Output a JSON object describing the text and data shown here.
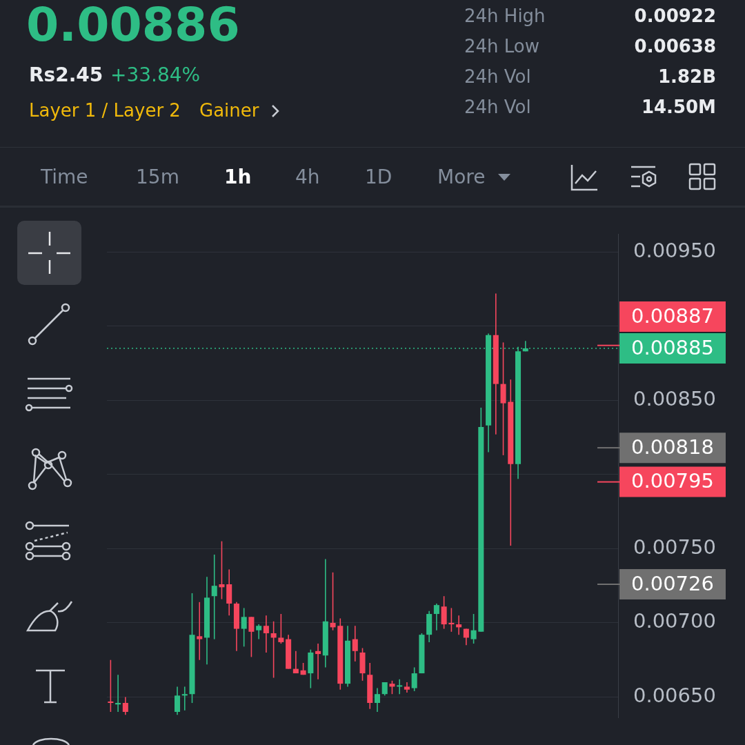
{
  "chart_data": {
    "type": "candlestick",
    "title": "0.00886",
    "subtitle": "Rs2.45",
    "annotations": [
      "+33.84%",
      "Layer 1 / Layer 2",
      "Gainer",
      "24h High",
      "0.00922",
      "24h Low",
      "0.00638",
      "24h Vol",
      "1.82B",
      "24h Vol",
      "14.50M",
      "Time",
      "15m",
      "1h",
      "4h",
      "1D",
      "More"
    ],
    "categories": [
      null,
      null,
      null,
      null,
      null,
      null,
      null,
      null,
      null,
      null,
      null,
      null,
      null,
      null,
      null,
      null,
      null,
      null,
      null,
      null,
      null,
      null,
      null,
      null,
      null,
      null,
      null,
      null,
      null,
      null,
      null,
      null,
      null,
      null,
      null,
      null,
      null,
      null,
      null,
      null,
      null,
      null,
      null,
      null,
      null,
      null,
      null,
      null,
      null,
      null,
      null,
      null,
      null,
      null,
      null,
      null,
      null,
      null,
      null,
      null,
      null,
      null,
      null,
      null,
      null,
      null,
      null,
      null,
      null
    ],
    "ohlc": [
      [
        0.00647,
        0.00675,
        0.0064,
        0.00646
      ],
      [
        0.00645,
        0.00665,
        0.0064,
        0.00646
      ],
      [
        0.00646,
        0.0065,
        0.00638,
        0.0064
      ],
      null,
      null,
      null,
      null,
      null,
      null,
      [
        0.0064,
        0.00657,
        0.00638,
        0.00651
      ],
      [
        0.00651,
        0.00657,
        0.00641,
        0.00652
      ],
      [
        0.00652,
        0.0072,
        0.00646,
        0.00692
      ],
      [
        0.00691,
        0.00714,
        0.00675,
        0.00689
      ],
      [
        0.0069,
        0.00731,
        0.00672,
        0.00717
      ],
      [
        0.00718,
        0.00746,
        0.00689,
        0.00725
      ],
      [
        0.00726,
        0.00755,
        0.00716,
        0.00724
      ],
      [
        0.00726,
        0.00736,
        0.00705,
        0.00713
      ],
      [
        0.00713,
        0.00714,
        0.00681,
        0.00696
      ],
      [
        0.00696,
        0.0071,
        0.00684,
        0.00704
      ],
      [
        0.00704,
        0.00704,
        0.00677,
        0.00694
      ],
      [
        0.00695,
        0.00699,
        0.00689,
        0.00698
      ],
      [
        0.00698,
        0.00705,
        0.0068,
        0.00693
      ],
      [
        0.00693,
        0.00701,
        0.00663,
        0.0069
      ],
      [
        0.0069,
        0.00706,
        0.00686,
        0.00687
      ],
      [
        0.00689,
        0.00692,
        0.00669,
        0.00669
      ],
      [
        0.00669,
        0.00681,
        0.00666,
        0.00666
      ],
      [
        0.00668,
        0.00673,
        0.00665,
        0.00665
      ],
      [
        0.00666,
        0.00682,
        0.00656,
        0.0068
      ],
      [
        0.00681,
        0.00686,
        0.00662,
        0.00679
      ],
      [
        0.00678,
        0.00743,
        0.0067,
        0.00701
      ],
      [
        0.007,
        0.00734,
        0.00695,
        0.00697
      ],
      [
        0.00698,
        0.00703,
        0.00655,
        0.00659
      ],
      [
        0.00659,
        0.00698,
        0.00657,
        0.00688
      ],
      [
        0.00689,
        0.00698,
        0.00674,
        0.00681
      ],
      [
        0.0068,
        0.00683,
        0.00661,
        0.00666
      ],
      [
        0.00665,
        0.00673,
        0.00642,
        0.00646
      ],
      [
        0.00646,
        0.00656,
        0.0064,
        0.00652
      ],
      [
        0.00652,
        0.0066,
        0.00651,
        0.0066
      ],
      [
        0.00659,
        0.00661,
        0.00652,
        0.00657
      ],
      [
        0.00657,
        0.00662,
        0.00652,
        0.00657
      ],
      [
        0.00657,
        0.0066,
        0.00653,
        0.00655
      ],
      [
        0.00656,
        0.0067,
        0.00654,
        0.00666
      ],
      [
        0.00666,
        0.00693,
        0.00666,
        0.00692
      ],
      [
        0.00692,
        0.00708,
        0.00687,
        0.00706
      ],
      [
        0.00706,
        0.00713,
        0.00695,
        0.00712
      ],
      [
        0.00711,
        0.00718,
        0.00696,
        0.00699
      ],
      [
        0.007,
        0.0071,
        0.00694,
        0.00699
      ],
      [
        0.00699,
        0.00705,
        0.00692,
        0.00697
      ],
      [
        0.00696,
        0.00696,
        0.00685,
        0.0069
      ],
      [
        0.00689,
        0.00706,
        0.00686,
        0.00695
      ],
      [
        0.00694,
        0.00845,
        0.00694,
        0.00832
      ],
      [
        0.00833,
        0.00895,
        0.00815,
        0.00894
      ],
      [
        0.00894,
        0.00922,
        0.00827,
        0.00861
      ],
      [
        0.00861,
        0.00889,
        0.00813,
        0.00848
      ],
      [
        0.00849,
        0.00864,
        0.00752,
        0.00807
      ],
      [
        0.00807,
        0.00886,
        0.00797,
        0.00883
      ],
      [
        0.00883,
        0.0089,
        0.00883,
        0.00885
      ],
      null,
      null,
      null,
      null,
      null,
      null,
      null,
      null,
      null,
      null,
      null,
      null
    ],
    "colors": [
      "#f6465d",
      "#2ebd85",
      "#f6465d",
      null,
      null,
      null,
      null,
      null,
      null,
      "#2ebd85",
      "#2ebd85",
      "#2ebd85",
      "#f6465d",
      "#2ebd85",
      "#2ebd85",
      "#f6465d",
      "#f6465d",
      "#f6465d",
      "#2ebd85",
      "#f6465d",
      "#2ebd85",
      "#f6465d",
      "#f6465d",
      "#f6465d",
      "#f6465d",
      "#f6465d",
      "#f6465d",
      "#2ebd85",
      "#f6465d",
      "#2ebd85",
      "#f6465d",
      "#f6465d",
      "#2ebd85",
      "#f6465d",
      "#f6465d",
      "#f6465d",
      "#2ebd85",
      "#2ebd85",
      "#f6465d",
      "#2ebd85",
      "#f6465d",
      "#2ebd85",
      "#2ebd85",
      "#2ebd85",
      "#2ebd85",
      "#f6465d",
      "#f6465d",
      "#f6465d",
      "#f6465d",
      "#2ebd85",
      "#2ebd85",
      "#2ebd85",
      "#f6465d",
      "#f6465d",
      "#f6465d",
      "#2ebd85",
      "#2ebd85",
      null,
      null,
      null,
      null,
      null,
      null,
      null,
      null,
      null,
      null,
      null,
      null
    ],
    "ylim": [
      0.00636,
      0.00962
    ],
    "yticks": [
      {
        "value": 0.0065,
        "label": "0.00650"
      },
      {
        "value": 0.007,
        "label": "0.00700"
      },
      {
        "value": 0.0075,
        "label": "0.00750"
      },
      {
        "value": 0.008,
        "label": null
      },
      {
        "value": 0.0085,
        "label": "0.00850"
      },
      {
        "value": 0.009,
        "label": null
      },
      {
        "value": 0.0095,
        "label": "0.00950"
      }
    ],
    "tick_labels": "y",
    "grid": "y",
    "ref_lines": [
      {
        "axis": "y",
        "value": 0.00887,
        "label": "0.00887",
        "color": "#f6465d",
        "line_style": "solid"
      },
      {
        "axis": "y",
        "value": 0.00885,
        "label": "0.00885",
        "color": "#2ebd85",
        "line_style": "dotted"
      },
      {
        "axis": "y",
        "value": 0.00818,
        "label": "0.00818",
        "color": "#707070",
        "line_style": "solid"
      },
      {
        "axis": "y",
        "value": 0.00795,
        "label": "0.00795",
        "color": "#f6465d",
        "line_style": "solid"
      },
      {
        "axis": "y",
        "value": 0.00726,
        "label": "0.00726",
        "color": "#707070",
        "line_style": "solid"
      }
    ]
  }
}
